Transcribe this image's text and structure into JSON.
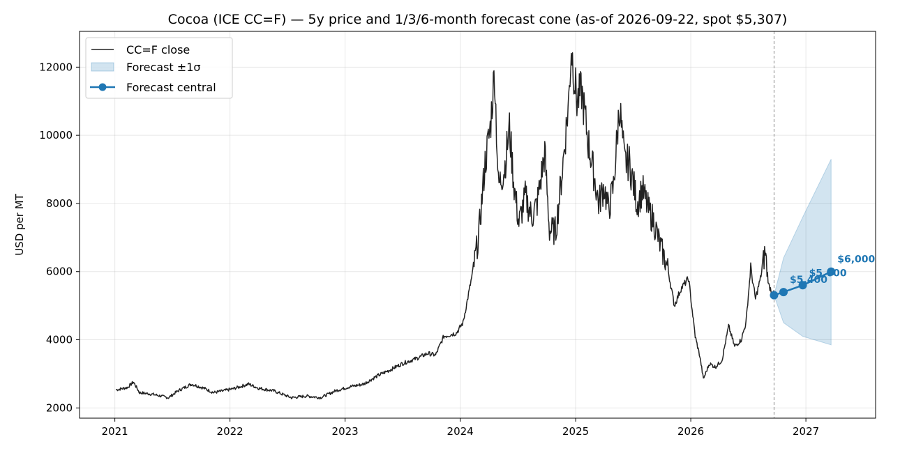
{
  "chart_data": {
    "type": "line",
    "title": "Cocoa (ICE CC=F) — 5y price and 1/3/6-month forecast cone (as-of 2026-09-22, spot $5,307)",
    "xlabel": "",
    "ylabel": "USD per MT",
    "x_range": [
      "2020-09-11",
      "2027-08-10"
    ],
    "ylim": [
      1700,
      13050
    ],
    "x_ticks": [
      "2021",
      "2022",
      "2023",
      "2024",
      "2025",
      "2026",
      "2027"
    ],
    "y_ticks": [
      2000,
      4000,
      6000,
      8000,
      10000,
      12000
    ],
    "y_tick_labels": [
      "2000",
      "4000",
      "6000",
      "8000",
      "10000",
      "12000"
    ],
    "grid": true,
    "legend_position": "top-left",
    "as_of_date": "2026-09-22",
    "colors": {
      "price": "#222222",
      "forecast": "#1f77b4",
      "cone_fill": "#1f77b4",
      "asof_line": "#888888"
    },
    "series": [
      {
        "name": "CC=F close",
        "kind": "line",
        "points": [
          [
            "2021-01-04",
            2530
          ],
          [
            "2021-02-10",
            2600
          ],
          [
            "2021-03-01",
            2760
          ],
          [
            "2021-03-20",
            2450
          ],
          [
            "2021-05-01",
            2400
          ],
          [
            "2021-06-20",
            2300
          ],
          [
            "2021-07-20",
            2500
          ],
          [
            "2021-09-01",
            2700
          ],
          [
            "2021-10-10",
            2580
          ],
          [
            "2021-11-10",
            2450
          ],
          [
            "2021-12-10",
            2500
          ],
          [
            "2022-01-10",
            2560
          ],
          [
            "2022-03-01",
            2700
          ],
          [
            "2022-04-01",
            2580
          ],
          [
            "2022-05-20",
            2500
          ],
          [
            "2022-07-15",
            2300
          ],
          [
            "2022-09-01",
            2350
          ],
          [
            "2022-10-15",
            2300
          ],
          [
            "2022-12-01",
            2500
          ],
          [
            "2023-01-15",
            2620
          ],
          [
            "2023-03-01",
            2700
          ],
          [
            "2023-04-15",
            2950
          ],
          [
            "2023-05-20",
            3100
          ],
          [
            "2023-07-01",
            3300
          ],
          [
            "2023-08-15",
            3450
          ],
          [
            "2023-09-20",
            3600
          ],
          [
            "2023-10-15",
            3550
          ],
          [
            "2023-11-10",
            4100
          ],
          [
            "2023-12-20",
            4200
          ],
          [
            "2024-01-10",
            4500
          ],
          [
            "2024-02-10",
            6000
          ],
          [
            "2024-02-28",
            7000
          ],
          [
            "2024-03-20",
            9200
          ],
          [
            "2024-04-05",
            10200
          ],
          [
            "2024-04-19",
            11900
          ],
          [
            "2024-05-01",
            8500
          ],
          [
            "2024-05-20",
            9000
          ],
          [
            "2024-06-05",
            10200
          ],
          [
            "2024-06-20",
            8500
          ],
          [
            "2024-07-05",
            7400
          ],
          [
            "2024-07-25",
            8200
          ],
          [
            "2024-08-15",
            7600
          ],
          [
            "2024-09-01",
            8000
          ],
          [
            "2024-09-25",
            9500
          ],
          [
            "2024-10-10",
            7200
          ],
          [
            "2024-10-30",
            7200
          ],
          [
            "2024-11-20",
            9000
          ],
          [
            "2024-12-10",
            11000
          ],
          [
            "2024-12-18",
            12600
          ],
          [
            "2025-01-05",
            11000
          ],
          [
            "2025-01-20",
            11300
          ],
          [
            "2025-02-10",
            9800
          ],
          [
            "2025-03-01",
            8800
          ],
          [
            "2025-03-15",
            8000
          ],
          [
            "2025-04-01",
            8500
          ],
          [
            "2025-04-15",
            7800
          ],
          [
            "2025-05-01",
            8500
          ],
          [
            "2025-05-20",
            10900
          ],
          [
            "2025-06-05",
            9200
          ],
          [
            "2025-06-20",
            9200
          ],
          [
            "2025-07-15",
            8000
          ],
          [
            "2025-08-01",
            8400
          ],
          [
            "2025-08-20",
            7800
          ],
          [
            "2025-09-05",
            7500
          ],
          [
            "2025-09-25",
            6800
          ],
          [
            "2025-10-20",
            6100
          ],
          [
            "2025-11-10",
            5000
          ],
          [
            "2025-12-01",
            5500
          ],
          [
            "2025-12-25",
            5800
          ],
          [
            "2026-01-15",
            4100
          ],
          [
            "2026-01-30",
            3500
          ],
          [
            "2026-02-10",
            2850
          ],
          [
            "2026-03-01",
            3300
          ],
          [
            "2026-03-20",
            3200
          ],
          [
            "2026-04-10",
            3400
          ],
          [
            "2026-05-01",
            4400
          ],
          [
            "2026-05-20",
            3800
          ],
          [
            "2026-06-10",
            4000
          ],
          [
            "2026-06-25",
            4500
          ],
          [
            "2026-07-10",
            6100
          ],
          [
            "2026-07-25",
            5200
          ],
          [
            "2026-08-10",
            5800
          ],
          [
            "2026-08-25",
            6600
          ],
          [
            "2026-09-05",
            5600
          ],
          [
            "2026-09-22",
            5307
          ]
        ]
      },
      {
        "name": "Forecast ±1σ",
        "kind": "band",
        "x": [
          "2026-09-22",
          "2026-10-22",
          "2026-12-22",
          "2027-03-22"
        ],
        "lower": [
          5307,
          4500,
          4100,
          3850
        ],
        "upper": [
          5307,
          6400,
          7600,
          9300
        ]
      },
      {
        "name": "Forecast central",
        "kind": "line-markers",
        "x": [
          "2026-09-22",
          "2026-10-22",
          "2026-12-22",
          "2027-03-22"
        ],
        "values": [
          5307,
          5400,
          5600,
          6000
        ]
      }
    ],
    "annotations": [
      {
        "x": "2026-10-22",
        "y": 5400,
        "text": "$5,400"
      },
      {
        "x": "2026-12-22",
        "y": 5600,
        "text": "$5,600"
      },
      {
        "x": "2027-03-22",
        "y": 6000,
        "text": "$6,000"
      }
    ]
  }
}
